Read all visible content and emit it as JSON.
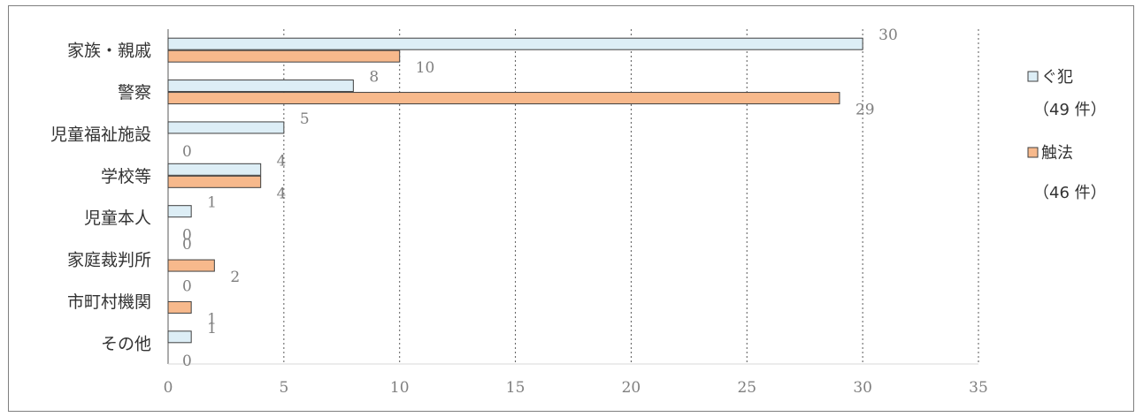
{
  "chart_data": {
    "type": "bar",
    "orientation": "horizontal",
    "categories": [
      "家族・親戚",
      "警察",
      "児童福祉施設",
      "学校等",
      "児童本人",
      "家庭裁判所",
      "市町村機関",
      "その他"
    ],
    "series": [
      {
        "name": "ぐ犯",
        "count_label": "（49 件）",
        "values": [
          30,
          8,
          5,
          4,
          1,
          0,
          0,
          1
        ],
        "color": "#ddeef6"
      },
      {
        "name": "触法",
        "count_label": "（46 件）",
        "values": [
          10,
          29,
          0,
          4,
          0,
          2,
          1,
          0
        ],
        "color": "#f7b98c"
      }
    ],
    "xlim": [
      0,
      35
    ],
    "xticks": [
      "0",
      "5",
      "10",
      "15",
      "20",
      "25",
      "30",
      "35"
    ],
    "grid": "vertical-dotted",
    "legend_position": "right",
    "bar_border_color": "#3f3f3f"
  }
}
